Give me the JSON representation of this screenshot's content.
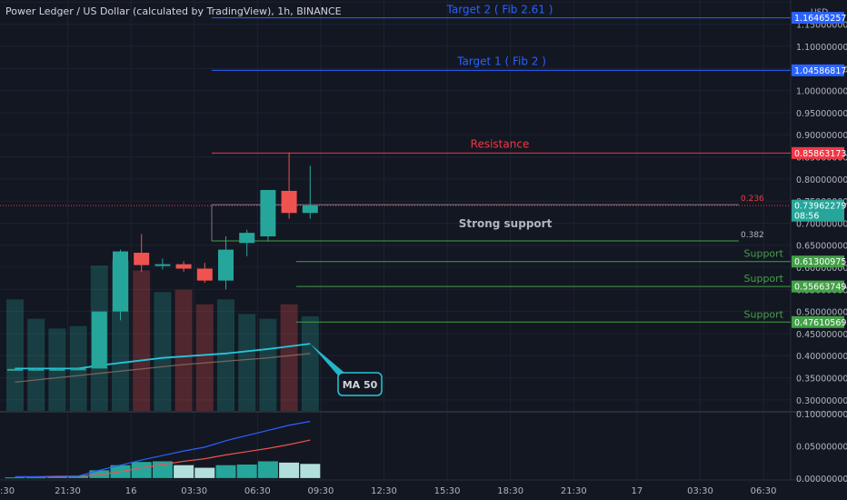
{
  "header": {
    "title": "Power Ledger / US Dollar (calculated by TradingView), 1h, BINANCE",
    "currency": "USD"
  },
  "colors": {
    "background": "#131722",
    "grid": "#1e2230",
    "up": "#26a69a",
    "down": "#ef5350",
    "target": "#2962ff",
    "resistance": "#f23645",
    "support": "#43a047",
    "ma": "#26c6da",
    "fib": "#787b86"
  },
  "chart_data": {
    "type": "candlestick",
    "title": "Power Ledger / US Dollar (calculated by TradingView), 1h, BINANCE",
    "ylim": [
      0.275,
      1.205
    ],
    "y_ticks": [
      "1.20000000",
      "1.15000000",
      "1.10000000",
      "1.05000000",
      "1.00000000",
      "0.95000000",
      "0.90000000",
      "0.85000000",
      "0.80000000",
      "0.75000000",
      "0.70000000",
      "0.65000000",
      "0.60000000",
      "0.55000000",
      "0.50000000",
      "0.45000000",
      "0.40000000",
      "0.35000000",
      "0.30000000"
    ],
    "y_tick_values": [
      1.2,
      1.15,
      1.1,
      1.05,
      1.0,
      0.95,
      0.9,
      0.85,
      0.8,
      0.75,
      0.7,
      0.65,
      0.6,
      0.55,
      0.5,
      0.45,
      0.4,
      0.35,
      0.3
    ],
    "x_ticks": [
      "21:30",
      "16",
      "03:30",
      "06:30",
      "09:30",
      "12:30",
      "15:30",
      "18:30",
      "21:30",
      "17",
      "03:30",
      "06:30"
    ],
    "x_tick_index": [
      2.5,
      5.5,
      8.5,
      11.5,
      14.5,
      17.5,
      20.5,
      23.5,
      26.5,
      29.5,
      32.5,
      35.5
    ],
    "x_first_tick": ":30",
    "n_slots": 38,
    "candles": [
      {
        "open": 0.37,
        "high": 0.372,
        "low": 0.368,
        "close": 0.37
      },
      {
        "open": 0.37,
        "high": 0.372,
        "low": 0.368,
        "close": 0.37
      },
      {
        "open": 0.37,
        "high": 0.372,
        "low": 0.368,
        "close": 0.37
      },
      {
        "open": 0.37,
        "high": 0.372,
        "low": 0.368,
        "close": 0.371
      },
      {
        "open": 0.371,
        "high": 0.5,
        "low": 0.371,
        "close": 0.5
      },
      {
        "open": 0.5,
        "high": 0.64,
        "low": 0.48,
        "close": 0.636
      },
      {
        "open": 0.633,
        "high": 0.675,
        "low": 0.59,
        "close": 0.605
      },
      {
        "open": 0.607,
        "high": 0.62,
        "low": 0.595,
        "close": 0.607
      },
      {
        "open": 0.607,
        "high": 0.614,
        "low": 0.59,
        "close": 0.597
      },
      {
        "open": 0.597,
        "high": 0.61,
        "low": 0.565,
        "close": 0.57
      },
      {
        "open": 0.57,
        "high": 0.67,
        "low": 0.55,
        "close": 0.64
      },
      {
        "open": 0.655,
        "high": 0.685,
        "low": 0.625,
        "close": 0.678
      },
      {
        "open": 0.67,
        "high": 0.775,
        "low": 0.66,
        "close": 0.775
      },
      {
        "open": 0.773,
        "high": 0.86,
        "low": 0.71,
        "close": 0.723
      },
      {
        "open": 0.723,
        "high": 0.83,
        "low": 0.71,
        "close": 0.74
      }
    ],
    "volume": [
      0.46,
      0.38,
      0.34,
      0.35,
      0.6,
      0.62,
      0.58,
      0.49,
      0.5,
      0.44,
      0.46,
      0.4,
      0.38,
      0.44,
      0.39
    ],
    "volume_range": [
      0,
      0.75
    ],
    "ma_line": [
      {
        "i": 0,
        "v": 0.371
      },
      {
        "i": 3,
        "v": 0.371
      },
      {
        "i": 4,
        "v": 0.378
      },
      {
        "i": 7,
        "v": 0.395
      },
      {
        "i": 10,
        "v": 0.405
      },
      {
        "i": 12,
        "v": 0.415
      },
      {
        "i": 14,
        "v": 0.427
      }
    ],
    "ma2_line": [
      {
        "i": 0,
        "v": 0.34
      },
      {
        "i": 4,
        "v": 0.36
      },
      {
        "i": 8,
        "v": 0.38
      },
      {
        "i": 12,
        "v": 0.395
      },
      {
        "i": 14,
        "v": 0.405
      }
    ],
    "price_labels": [
      {
        "value": 1.16465257,
        "text": "1.16465257",
        "kind": "target"
      },
      {
        "value": 1.04586817,
        "text": "1.04586817",
        "kind": "target"
      },
      {
        "value": 0.85863173,
        "text": "0.85863173",
        "kind": "resistance"
      },
      {
        "value": 0.73962279,
        "text": "0.73962279",
        "sub": "08:56",
        "kind": "last"
      },
      {
        "value": 0.61300975,
        "text": "0.61300975",
        "kind": "support"
      },
      {
        "value": 0.55663749,
        "text": "0.55663749",
        "kind": "support"
      },
      {
        "value": 0.47610569,
        "text": "0.47610569",
        "kind": "support"
      }
    ],
    "annotations": {
      "target2": "Target 2 ( Fib 2.61 )",
      "target1": "Target 1 ( Fib 2 )",
      "resistance": "Resistance",
      "fib_236": "0.236",
      "fib_382": "0.382",
      "strong_support": "Strong support",
      "support1": "Support",
      "support2": "Support",
      "support3": "Support",
      "ma_label": "MA 50"
    },
    "indicator": {
      "ylim": [
        -0.003,
        0.1
      ],
      "y_ticks": [
        "0.10000000",
        "0.05000000",
        "0.00000000"
      ],
      "y_tick_values": [
        0.1,
        0.05,
        0.0
      ],
      "hist": [
        0.001,
        0.001,
        0.002,
        0.003,
        0.012,
        0.02,
        0.025,
        0.026,
        0.02,
        0.016,
        0.02,
        0.021,
        0.026,
        0.024,
        0.022
      ],
      "line_blue": [
        0.002,
        0.002,
        0.003,
        0.003,
        0.012,
        0.02,
        0.028,
        0.035,
        0.042,
        0.048,
        0.058,
        0.066,
        0.074,
        0.082,
        0.088
      ],
      "line_red": [
        0.002,
        0.002,
        0.002,
        0.003,
        0.005,
        0.01,
        0.016,
        0.021,
        0.026,
        0.03,
        0.036,
        0.041,
        0.046,
        0.052,
        0.059
      ]
    }
  }
}
